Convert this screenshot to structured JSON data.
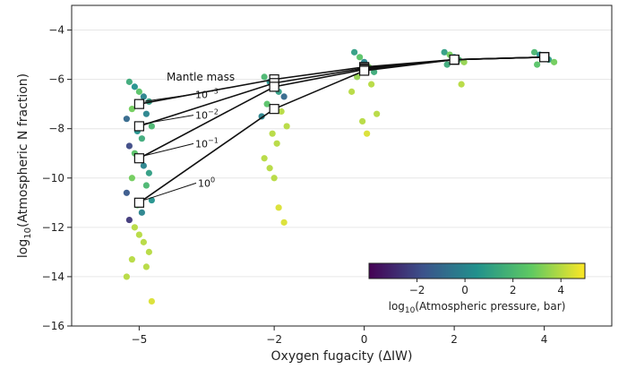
{
  "chart_data": {
    "type": "scatter",
    "xlabel": "Oxygen fugacity (ΔIW)",
    "ylabel_main": "log",
    "ylabel_sub": "10",
    "ylabel_rest": "(Atmospheric N fraction)",
    "xlim": [
      -6.5,
      5.5
    ],
    "ylim": [
      -16,
      -3
    ],
    "xticks": [
      {
        "value": -5,
        "label": "−5"
      },
      {
        "value": -2,
        "label": "−2"
      },
      {
        "value": 0,
        "label": "0"
      },
      {
        "value": 2,
        "label": "2"
      },
      {
        "value": 4,
        "label": "4"
      }
    ],
    "yticks": [
      {
        "value": -4,
        "label": "−4"
      },
      {
        "value": -6,
        "label": "−6"
      },
      {
        "value": -8,
        "label": "−8"
      },
      {
        "value": -10,
        "label": "−10"
      },
      {
        "value": -12,
        "label": "−12"
      },
      {
        "value": -14,
        "label": "−14"
      },
      {
        "value": -16,
        "label": "−16"
      }
    ],
    "grid": "horizontal",
    "colorbar": {
      "label_main": "log",
      "label_sub": "10",
      "label_rest": "(Atmospheric pressure, bar)",
      "range": [
        -4,
        5
      ],
      "ticks": [
        {
          "value": -2,
          "label": "−2"
        },
        {
          "value": 0,
          "label": "0"
        },
        {
          "value": 2,
          "label": "2"
        },
        {
          "value": 4,
          "label": "4"
        }
      ],
      "colors": [
        "#440154",
        "#3b528b",
        "#21918c",
        "#5ec962",
        "#fde725"
      ],
      "placement": "lower-right"
    },
    "scatter_clusters": [
      {
        "x": -5,
        "points": [
          {
            "y": -6.1,
            "c": 1.5
          },
          {
            "y": -6.3,
            "c": 0.5
          },
          {
            "y": -6.5,
            "c": 2.5
          },
          {
            "y": -6.7,
            "c": 0.0
          },
          {
            "y": -6.9,
            "c": 1.0
          },
          {
            "y": -7.2,
            "c": 3.0
          },
          {
            "y": -7.4,
            "c": 0.0
          },
          {
            "y": -7.6,
            "c": -1.0
          },
          {
            "y": -7.9,
            "c": 2.0
          },
          {
            "y": -8.1,
            "c": 0.5
          },
          {
            "y": -8.4,
            "c": 1.5
          },
          {
            "y": -8.7,
            "c": -2.0
          },
          {
            "y": -9.0,
            "c": 2.5
          },
          {
            "y": -9.2,
            "c": 3.5
          },
          {
            "y": -9.5,
            "c": 0.0
          },
          {
            "y": -9.8,
            "c": 1.0
          },
          {
            "y": -10.0,
            "c": 3.0
          },
          {
            "y": -10.3,
            "c": 2.0
          },
          {
            "y": -10.6,
            "c": -1.5
          },
          {
            "y": -10.9,
            "c": 0.5
          },
          {
            "y": -11.1,
            "c": 2.5
          },
          {
            "y": -11.4,
            "c": 0.0
          },
          {
            "y": -11.7,
            "c": -2.5
          },
          {
            "y": -12.0,
            "c": 4.0
          },
          {
            "y": -12.3,
            "c": 4.0
          },
          {
            "y": -12.6,
            "c": 4.0
          },
          {
            "y": -13.0,
            "c": 4.0
          },
          {
            "y": -13.3,
            "c": 4.0
          },
          {
            "y": -13.6,
            "c": 4.0
          },
          {
            "y": -14.0,
            "c": 4.0
          },
          {
            "y": -15.0,
            "c": 4.5
          }
        ]
      },
      {
        "x": -2,
        "points": [
          {
            "y": -5.9,
            "c": 2.0
          },
          {
            "y": -6.1,
            "c": 0.5
          },
          {
            "y": -6.3,
            "c": 3.0
          },
          {
            "y": -6.5,
            "c": 1.0
          },
          {
            "y": -6.7,
            "c": -1.0
          },
          {
            "y": -7.0,
            "c": 2.5
          },
          {
            "y": -7.3,
            "c": 4.0
          },
          {
            "y": -7.5,
            "c": 0.0
          },
          {
            "y": -7.9,
            "c": 4.0
          },
          {
            "y": -8.2,
            "c": 4.0
          },
          {
            "y": -8.6,
            "c": 4.0
          },
          {
            "y": -9.2,
            "c": 4.0
          },
          {
            "y": -9.6,
            "c": 4.0
          },
          {
            "y": -10.0,
            "c": 4.0
          },
          {
            "y": -11.2,
            "c": 4.5
          },
          {
            "y": -11.8,
            "c": 4.5
          }
        ]
      },
      {
        "x": 0,
        "points": [
          {
            "y": -4.9,
            "c": 1.0
          },
          {
            "y": -5.1,
            "c": 2.5
          },
          {
            "y": -5.3,
            "c": 0.0
          },
          {
            "y": -5.5,
            "c": 3.0
          },
          {
            "y": -5.7,
            "c": 1.5
          },
          {
            "y": -5.9,
            "c": 3.5
          },
          {
            "y": -6.2,
            "c": 4.0
          },
          {
            "y": -6.5,
            "c": 4.0
          },
          {
            "y": -7.4,
            "c": 4.0
          },
          {
            "y": -7.7,
            "c": 4.0
          },
          {
            "y": -8.2,
            "c": 4.5
          }
        ]
      },
      {
        "x": 2,
        "points": [
          {
            "y": -4.9,
            "c": 1.0
          },
          {
            "y": -5.0,
            "c": 3.0
          },
          {
            "y": -5.1,
            "c": 0.0
          },
          {
            "y": -5.2,
            "c": 2.0
          },
          {
            "y": -5.3,
            "c": 3.5
          },
          {
            "y": -5.4,
            "c": 1.5
          },
          {
            "y": -6.2,
            "c": 4.0
          }
        ]
      },
      {
        "x": 4,
        "points": [
          {
            "y": -4.9,
            "c": 2.0
          },
          {
            "y": -5.0,
            "c": 0.5
          },
          {
            "y": -5.1,
            "c": 3.5
          },
          {
            "y": -5.2,
            "c": 1.0
          },
          {
            "y": -5.3,
            "c": 3.0
          },
          {
            "y": -5.4,
            "c": 2.5
          }
        ]
      }
    ],
    "series": [
      {
        "name": "10^-3",
        "points": [
          [
            -5,
            -7.0
          ],
          [
            -2,
            -6.0
          ],
          [
            0,
            -5.5
          ],
          [
            2,
            -5.2
          ],
          [
            4,
            -5.1
          ]
        ]
      },
      {
        "name": "10^-2",
        "points": [
          [
            -5,
            -7.9
          ],
          [
            -2,
            -6.15
          ],
          [
            0,
            -5.55
          ],
          [
            2,
            -5.2
          ],
          [
            4,
            -5.1
          ]
        ]
      },
      {
        "name": "10^-1",
        "points": [
          [
            -5,
            -9.2
          ],
          [
            -2,
            -6.3
          ],
          [
            0,
            -5.6
          ],
          [
            2,
            -5.2
          ],
          [
            4,
            -5.1
          ]
        ]
      },
      {
        "name": "10^0",
        "points": [
          [
            -5,
            -11.0
          ],
          [
            -2,
            -7.2
          ],
          [
            0,
            -5.65
          ],
          [
            2,
            -5.2
          ],
          [
            4,
            -5.1
          ]
        ]
      }
    ],
    "annotations": {
      "title": "Mantle mass",
      "labels": [
        {
          "base": "10",
          "exp": "−3",
          "series": 0
        },
        {
          "base": "10",
          "exp": "−2",
          "series": 1
        },
        {
          "base": "10",
          "exp": "−1",
          "series": 2
        },
        {
          "base": "10",
          "exp": "0",
          "series": 3
        }
      ]
    }
  }
}
